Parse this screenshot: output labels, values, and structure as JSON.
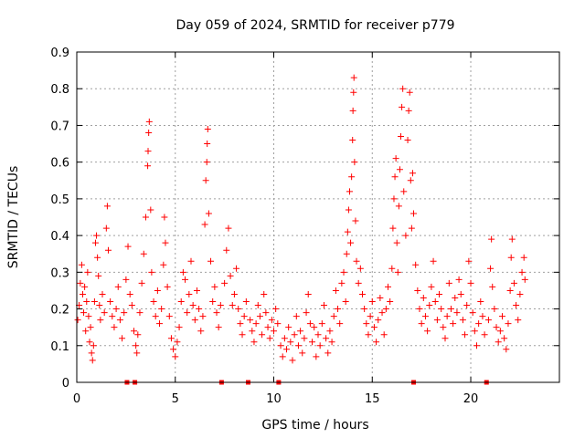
{
  "chart_data": {
    "type": "scatter",
    "title": "Day 059 of 2024, SRMTID for receiver p779",
    "xlabel": "GPS time / hours",
    "ylabel": "SRMTID / TECUs",
    "xlim": [
      0,
      24.5
    ],
    "ylim": [
      0,
      0.9
    ],
    "xticks": [
      0,
      5,
      10,
      15,
      20
    ],
    "yticks": [
      0,
      0.1,
      0.2,
      0.3,
      0.4,
      0.5,
      0.6,
      0.7,
      0.8,
      0.9
    ],
    "xtick_labels": [
      "0",
      "5",
      "10",
      "15",
      "20"
    ],
    "ytick_labels": [
      "0",
      "0.1",
      "0.2",
      "0.3",
      "0.4",
      "0.5",
      "0.6",
      "0.7",
      "0.8",
      "0.9"
    ],
    "grid": true,
    "marker": "plus",
    "series_color": "#ff0000",
    "zero_value_points_x": [
      2.55,
      2.95,
      7.35,
      8.7,
      10.25,
      17.1,
      20.8
    ],
    "points": [
      [
        0.05,
        0.17
      ],
      [
        0.12,
        0.21
      ],
      [
        0.18,
        0.27
      ],
      [
        0.25,
        0.32
      ],
      [
        0.3,
        0.24
      ],
      [
        0.35,
        0.19
      ],
      [
        0.4,
        0.26
      ],
      [
        0.45,
        0.14
      ],
      [
        0.5,
        0.22
      ],
      [
        0.55,
        0.3
      ],
      [
        0.6,
        0.18
      ],
      [
        0.65,
        0.11
      ],
      [
        0.7,
        0.15
      ],
      [
        0.75,
        0.08
      ],
      [
        0.8,
        0.06
      ],
      [
        0.85,
        0.1
      ],
      [
        0.9,
        0.22
      ],
      [
        0.95,
        0.38
      ],
      [
        1.0,
        0.4
      ],
      [
        1.05,
        0.34
      ],
      [
        1.1,
        0.29
      ],
      [
        1.15,
        0.21
      ],
      [
        1.2,
        0.17
      ],
      [
        1.3,
        0.24
      ],
      [
        1.4,
        0.19
      ],
      [
        1.5,
        0.42
      ],
      [
        1.55,
        0.48
      ],
      [
        1.6,
        0.36
      ],
      [
        1.7,
        0.22
      ],
      [
        1.8,
        0.18
      ],
      [
        1.9,
        0.15
      ],
      [
        2.0,
        0.2
      ],
      [
        2.1,
        0.26
      ],
      [
        2.2,
        0.17
      ],
      [
        2.3,
        0.12
      ],
      [
        2.4,
        0.19
      ],
      [
        2.5,
        0.28
      ],
      [
        2.6,
        0.37
      ],
      [
        2.7,
        0.24
      ],
      [
        2.8,
        0.21
      ],
      [
        2.9,
        0.14
      ],
      [
        3.0,
        0.1
      ],
      [
        3.05,
        0.08
      ],
      [
        3.1,
        0.13
      ],
      [
        3.2,
        0.19
      ],
      [
        3.3,
        0.27
      ],
      [
        3.4,
        0.35
      ],
      [
        3.5,
        0.45
      ],
      [
        3.6,
        0.59
      ],
      [
        3.62,
        0.63
      ],
      [
        3.65,
        0.68
      ],
      [
        3.68,
        0.71
      ],
      [
        3.75,
        0.47
      ],
      [
        3.8,
        0.3
      ],
      [
        3.9,
        0.22
      ],
      [
        4.0,
        0.18
      ],
      [
        4.1,
        0.25
      ],
      [
        4.2,
        0.16
      ],
      [
        4.3,
        0.2
      ],
      [
        4.4,
        0.32
      ],
      [
        4.45,
        0.45
      ],
      [
        4.5,
        0.38
      ],
      [
        4.6,
        0.26
      ],
      [
        4.7,
        0.18
      ],
      [
        4.8,
        0.12
      ],
      [
        4.9,
        0.09
      ],
      [
        5.0,
        0.07
      ],
      [
        5.1,
        0.11
      ],
      [
        5.2,
        0.15
      ],
      [
        5.3,
        0.22
      ],
      [
        5.4,
        0.3
      ],
      [
        5.5,
        0.28
      ],
      [
        5.6,
        0.19
      ],
      [
        5.7,
        0.24
      ],
      [
        5.8,
        0.33
      ],
      [
        5.9,
        0.21
      ],
      [
        6.0,
        0.17
      ],
      [
        6.1,
        0.25
      ],
      [
        6.2,
        0.2
      ],
      [
        6.3,
        0.14
      ],
      [
        6.4,
        0.18
      ],
      [
        6.5,
        0.43
      ],
      [
        6.55,
        0.55
      ],
      [
        6.6,
        0.6
      ],
      [
        6.62,
        0.65
      ],
      [
        6.65,
        0.69
      ],
      [
        6.7,
        0.46
      ],
      [
        6.8,
        0.33
      ],
      [
        6.9,
        0.22
      ],
      [
        7.0,
        0.26
      ],
      [
        7.1,
        0.19
      ],
      [
        7.2,
        0.15
      ],
      [
        7.3,
        0.21
      ],
      [
        7.5,
        0.27
      ],
      [
        7.6,
        0.36
      ],
      [
        7.7,
        0.42
      ],
      [
        7.8,
        0.29
      ],
      [
        7.9,
        0.21
      ],
      [
        8.0,
        0.24
      ],
      [
        8.1,
        0.31
      ],
      [
        8.2,
        0.2
      ],
      [
        8.3,
        0.16
      ],
      [
        8.4,
        0.13
      ],
      [
        8.5,
        0.18
      ],
      [
        8.6,
        0.22
      ],
      [
        8.8,
        0.17
      ],
      [
        8.9,
        0.14
      ],
      [
        9.0,
        0.11
      ],
      [
        9.1,
        0.16
      ],
      [
        9.2,
        0.21
      ],
      [
        9.3,
        0.18
      ],
      [
        9.4,
        0.13
      ],
      [
        9.5,
        0.24
      ],
      [
        9.6,
        0.19
      ],
      [
        9.7,
        0.15
      ],
      [
        9.8,
        0.12
      ],
      [
        9.9,
        0.17
      ],
      [
        10.0,
        0.14
      ],
      [
        10.1,
        0.2
      ],
      [
        10.2,
        0.16
      ],
      [
        10.35,
        0.1
      ],
      [
        10.45,
        0.07
      ],
      [
        10.55,
        0.12
      ],
      [
        10.65,
        0.09
      ],
      [
        10.75,
        0.15
      ],
      [
        10.85,
        0.11
      ],
      [
        10.95,
        0.06
      ],
      [
        11.05,
        0.13
      ],
      [
        11.15,
        0.18
      ],
      [
        11.25,
        0.1
      ],
      [
        11.35,
        0.14
      ],
      [
        11.45,
        0.08
      ],
      [
        11.55,
        0.12
      ],
      [
        11.65,
        0.19
      ],
      [
        11.75,
        0.24
      ],
      [
        11.85,
        0.16
      ],
      [
        11.95,
        0.11
      ],
      [
        12.05,
        0.15
      ],
      [
        12.15,
        0.07
      ],
      [
        12.25,
        0.13
      ],
      [
        12.35,
        0.1
      ],
      [
        12.45,
        0.16
      ],
      [
        12.55,
        0.21
      ],
      [
        12.65,
        0.12
      ],
      [
        12.75,
        0.08
      ],
      [
        12.85,
        0.14
      ],
      [
        12.95,
        0.11
      ],
      [
        13.05,
        0.18
      ],
      [
        13.15,
        0.25
      ],
      [
        13.25,
        0.2
      ],
      [
        13.35,
        0.16
      ],
      [
        13.45,
        0.27
      ],
      [
        13.55,
        0.3
      ],
      [
        13.65,
        0.22
      ],
      [
        13.7,
        0.35
      ],
      [
        13.75,
        0.41
      ],
      [
        13.8,
        0.47
      ],
      [
        13.85,
        0.52
      ],
      [
        13.9,
        0.38
      ],
      [
        13.95,
        0.56
      ],
      [
        14.0,
        0.66
      ],
      [
        14.02,
        0.74
      ],
      [
        14.05,
        0.79
      ],
      [
        14.07,
        0.83
      ],
      [
        14.1,
        0.6
      ],
      [
        14.15,
        0.44
      ],
      [
        14.2,
        0.33
      ],
      [
        14.3,
        0.27
      ],
      [
        14.4,
        0.31
      ],
      [
        14.5,
        0.24
      ],
      [
        14.6,
        0.2
      ],
      [
        14.7,
        0.16
      ],
      [
        14.8,
        0.13
      ],
      [
        14.9,
        0.18
      ],
      [
        15.0,
        0.22
      ],
      [
        15.1,
        0.15
      ],
      [
        15.2,
        0.11
      ],
      [
        15.3,
        0.17
      ],
      [
        15.4,
        0.23
      ],
      [
        15.5,
        0.19
      ],
      [
        15.6,
        0.13
      ],
      [
        15.7,
        0.2
      ],
      [
        15.8,
        0.26
      ],
      [
        15.9,
        0.22
      ],
      [
        16.0,
        0.31
      ],
      [
        16.05,
        0.42
      ],
      [
        16.1,
        0.5
      ],
      [
        16.15,
        0.56
      ],
      [
        16.2,
        0.61
      ],
      [
        16.25,
        0.38
      ],
      [
        16.3,
        0.3
      ],
      [
        16.35,
        0.48
      ],
      [
        16.4,
        0.58
      ],
      [
        16.45,
        0.67
      ],
      [
        16.5,
        0.75
      ],
      [
        16.55,
        0.8
      ],
      [
        16.6,
        0.52
      ],
      [
        16.7,
        0.4
      ],
      [
        16.8,
        0.66
      ],
      [
        16.85,
        0.74
      ],
      [
        16.9,
        0.79
      ],
      [
        16.95,
        0.55
      ],
      [
        17.0,
        0.42
      ],
      [
        17.05,
        0.57
      ],
      [
        17.1,
        0.46
      ],
      [
        17.2,
        0.32
      ],
      [
        17.3,
        0.25
      ],
      [
        17.4,
        0.2
      ],
      [
        17.5,
        0.16
      ],
      [
        17.6,
        0.23
      ],
      [
        17.7,
        0.18
      ],
      [
        17.8,
        0.14
      ],
      [
        17.9,
        0.21
      ],
      [
        18.0,
        0.26
      ],
      [
        18.1,
        0.33
      ],
      [
        18.2,
        0.22
      ],
      [
        18.3,
        0.17
      ],
      [
        18.4,
        0.24
      ],
      [
        18.5,
        0.2
      ],
      [
        18.6,
        0.15
      ],
      [
        18.7,
        0.12
      ],
      [
        18.8,
        0.18
      ],
      [
        18.9,
        0.27
      ],
      [
        19.0,
        0.2
      ],
      [
        19.1,
        0.16
      ],
      [
        19.2,
        0.23
      ],
      [
        19.3,
        0.19
      ],
      [
        19.4,
        0.28
      ],
      [
        19.5,
        0.24
      ],
      [
        19.6,
        0.17
      ],
      [
        19.7,
        0.13
      ],
      [
        19.8,
        0.21
      ],
      [
        19.9,
        0.33
      ],
      [
        20.0,
        0.27
      ],
      [
        20.1,
        0.19
      ],
      [
        20.2,
        0.14
      ],
      [
        20.3,
        0.1
      ],
      [
        20.4,
        0.16
      ],
      [
        20.5,
        0.22
      ],
      [
        20.6,
        0.18
      ],
      [
        20.7,
        0.13
      ],
      [
        20.9,
        0.17
      ],
      [
        21.0,
        0.31
      ],
      [
        21.05,
        0.39
      ],
      [
        21.1,
        0.26
      ],
      [
        21.2,
        0.2
      ],
      [
        21.3,
        0.15
      ],
      [
        21.4,
        0.11
      ],
      [
        21.5,
        0.14
      ],
      [
        21.6,
        0.18
      ],
      [
        21.7,
        0.12
      ],
      [
        21.8,
        0.09
      ],
      [
        21.9,
        0.16
      ],
      [
        22.0,
        0.25
      ],
      [
        22.05,
        0.34
      ],
      [
        22.1,
        0.39
      ],
      [
        22.2,
        0.27
      ],
      [
        22.3,
        0.21
      ],
      [
        22.4,
        0.17
      ],
      [
        22.5,
        0.24
      ],
      [
        22.6,
        0.3
      ],
      [
        22.7,
        0.34
      ],
      [
        22.75,
        0.28
      ]
    ]
  }
}
